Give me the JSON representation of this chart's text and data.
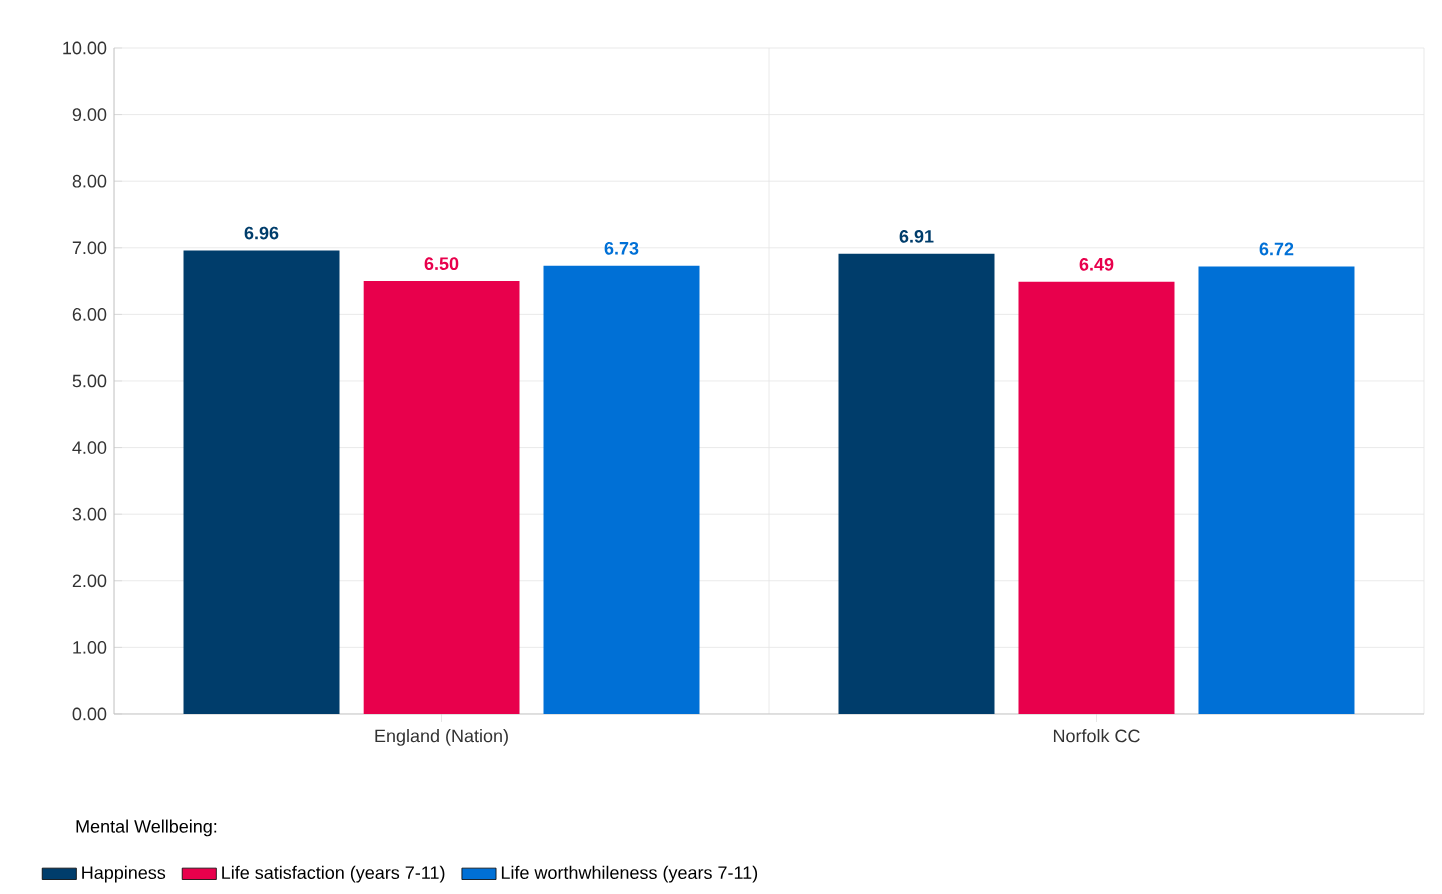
{
  "chart_data": {
    "type": "bar",
    "categories": [
      "England (Nation)",
      "Norfolk CC"
    ],
    "series": [
      {
        "name": "Happiness",
        "color": "#003d6b",
        "values": [
          6.96,
          6.91
        ],
        "value_labels": [
          "6.96",
          "6.91"
        ]
      },
      {
        "name": "Life satisfaction (years 7-11)",
        "color": "#e8004c",
        "values": [
          6.5,
          6.49
        ],
        "value_labels": [
          "6.50",
          "6.49"
        ]
      },
      {
        "name": "Life worthwhileness (years 7-11)",
        "color": "#0070d6",
        "values": [
          6.73,
          6.72
        ],
        "value_labels": [
          "6.73",
          "6.72"
        ]
      }
    ],
    "ylim": [
      0,
      10
    ],
    "yticks": [
      {
        "value": 0,
        "label": "0.00"
      },
      {
        "value": 1,
        "label": "1.00"
      },
      {
        "value": 2,
        "label": "2.00"
      },
      {
        "value": 3,
        "label": "3.00"
      },
      {
        "value": 4,
        "label": "4.00"
      },
      {
        "value": 5,
        "label": "5.00"
      },
      {
        "value": 6,
        "label": "6.00"
      },
      {
        "value": 7,
        "label": "7.00"
      },
      {
        "value": 8,
        "label": "8.00"
      },
      {
        "value": 9,
        "label": "9.00"
      },
      {
        "value": 10,
        "label": "10.00"
      }
    ],
    "grid": true,
    "legend": "bottom",
    "legend_title": "Mental Wellbeing:"
  }
}
